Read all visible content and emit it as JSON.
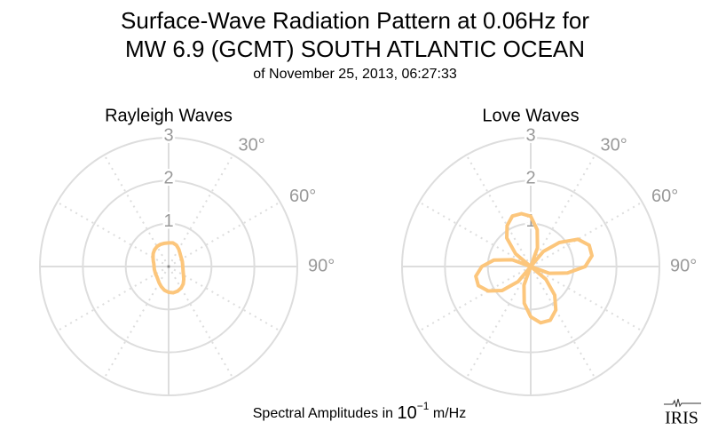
{
  "header": {
    "title_lines": [
      "Surface-Wave Radiation Pattern at 0.06Hz for",
      "MW 6.9 (GCMT) SOUTH ATLANTIC OCEAN"
    ],
    "subtitle": "of November 25, 2013, 06:27:33"
  },
  "chart_data": [
    {
      "type": "polar",
      "title": "Rayleigh Waves",
      "color": "#fcc67c",
      "rlim": [
        0,
        3
      ],
      "rticks": [
        1,
        2,
        3
      ],
      "thetaticks": [
        {
          "value": 30,
          "label": "30°"
        },
        {
          "value": 60,
          "label": "60°"
        },
        {
          "value": 90,
          "label": "90°"
        }
      ],
      "theta": [
        0,
        10,
        20,
        30,
        40,
        50,
        60,
        70,
        80,
        90,
        100,
        110,
        120,
        130,
        140,
        150,
        160,
        170,
        180,
        190,
        200,
        210,
        220,
        230,
        240,
        250,
        260,
        270,
        280,
        290,
        300,
        310,
        320,
        330,
        340,
        350
      ],
      "values": [
        0.55,
        0.56,
        0.53,
        0.47,
        0.41,
        0.37,
        0.35,
        0.34,
        0.33,
        0.33,
        0.34,
        0.36,
        0.4,
        0.46,
        0.53,
        0.58,
        0.61,
        0.62,
        0.6,
        0.56,
        0.5,
        0.44,
        0.39,
        0.36,
        0.35,
        0.34,
        0.34,
        0.34,
        0.35,
        0.38,
        0.42,
        0.47,
        0.51,
        0.54,
        0.55,
        0.55
      ]
    },
    {
      "type": "polar",
      "title": "Love Waves",
      "color": "#fcc67c",
      "rlim": [
        0,
        3
      ],
      "rticks": [
        1,
        2,
        3
      ],
      "thetaticks": [
        {
          "value": 30,
          "label": "30°"
        },
        {
          "value": 60,
          "label": "60°"
        },
        {
          "value": 90,
          "label": "90°"
        }
      ],
      "theta": [
        0,
        10,
        20,
        30,
        40,
        50,
        60,
        70,
        80,
        90,
        100,
        110,
        120,
        130,
        140,
        150,
        160,
        170,
        180,
        190,
        200,
        210,
        220,
        230,
        240,
        250,
        260,
        270,
        280,
        290,
        300,
        310,
        320,
        330,
        340,
        350
      ],
      "values": [
        1.17,
        0.87,
        0.46,
        0,
        0.46,
        0.87,
        1.27,
        1.45,
        1.45,
        1.27,
        0.87,
        0.46,
        0,
        0.46,
        0.87,
        1.17,
        1.33,
        1.33,
        1.17,
        0.87,
        0.46,
        0,
        0.46,
        0.87,
        1.14,
        1.3,
        1.3,
        1.14,
        0.87,
        0.46,
        0,
        0.46,
        0.87,
        1.1,
        1.25,
        1.25
      ]
    }
  ],
  "footer": {
    "parts": [
      "Spectral Amplitudes in",
      "10",
      "−1",
      "m/Hz"
    ]
  },
  "logo": {
    "text": "IRIS"
  }
}
